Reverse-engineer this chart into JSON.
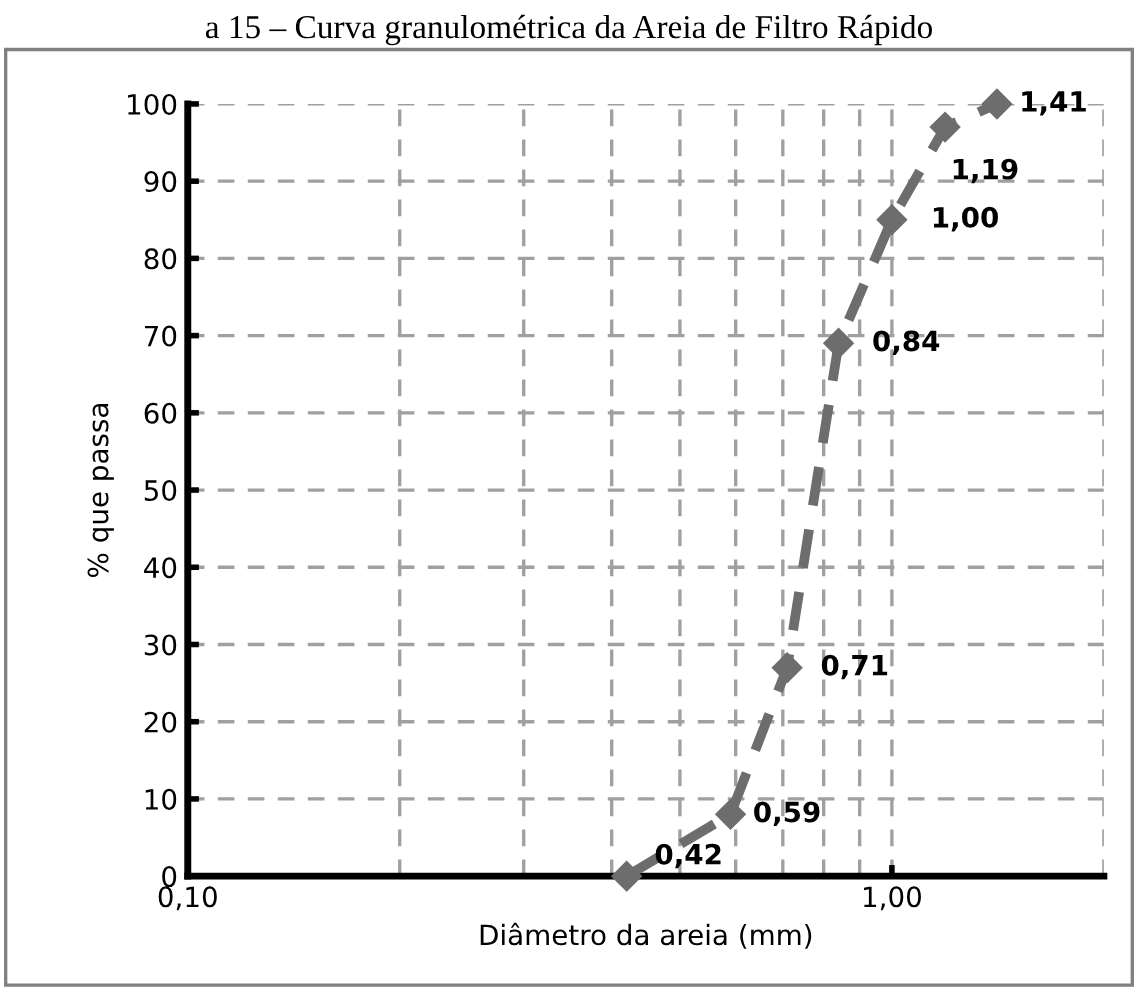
{
  "chart_data": {
    "type": "line",
    "title": "a 15 – Curva granulométrica da Areia de Filtro Rápido",
    "xlabel": "Diâmetro da areia (mm)",
    "ylabel": "% que passa",
    "series": [
      {
        "color": "#6d6d6d",
        "x": [
          0.42,
          0.59,
          0.71,
          0.84,
          1.0,
          1.19,
          1.41
        ],
        "values": [
          0,
          8,
          27,
          69,
          85,
          97,
          100
        ]
      }
    ],
    "log": "x",
    "xlim": [
      0.1,
      2
    ],
    "xticks": [
      {
        "value": 0.1,
        "label": "0,10"
      },
      {
        "value": 0.2,
        "label": null
      },
      {
        "value": 0.3,
        "label": null
      },
      {
        "value": 0.4,
        "label": null
      },
      {
        "value": 0.5,
        "label": null
      },
      {
        "value": 0.6,
        "label": null
      },
      {
        "value": 0.7,
        "label": null
      },
      {
        "value": 0.8,
        "label": null
      },
      {
        "value": 0.9,
        "label": null
      },
      {
        "value": 1,
        "label": "1,00"
      },
      {
        "value": 2,
        "label": null
      }
    ],
    "ylim": [
      0,
      100
    ],
    "yticks": [
      0,
      10,
      20,
      30,
      40,
      50,
      60,
      70,
      80,
      90,
      100
    ],
    "grid": true,
    "marker": "diamond",
    "line_style": "dashed",
    "annotations": [
      {
        "text": "0,42",
        "x": 0.42,
        "y": 0
      },
      {
        "text": "0,59",
        "x": 0.59,
        "y": 8
      },
      {
        "text": "0,71",
        "x": 0.71,
        "y": 27
      },
      {
        "text": "0,84",
        "x": 0.84,
        "y": 69
      },
      {
        "text": "1,00",
        "x": 1.0,
        "y": 85
      },
      {
        "text": "1,19",
        "x": 1.19,
        "y": 97
      },
      {
        "text": "1,41",
        "x": 1.41,
        "y": 100
      }
    ]
  }
}
